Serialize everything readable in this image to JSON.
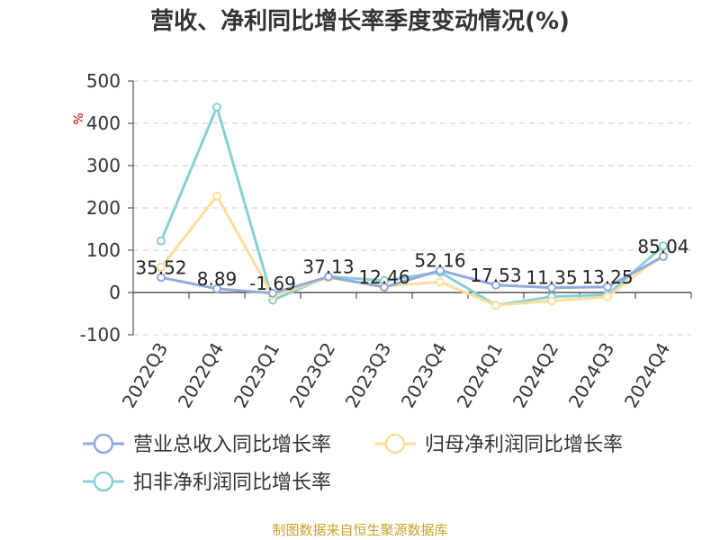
{
  "chart_data": {
    "type": "line",
    "title": "营收、净利同比增长率季度变动情况(%)",
    "ylabel": "%",
    "xlabel": "",
    "ylim": [
      -100,
      500
    ],
    "yticks": [
      -100,
      0,
      100,
      200,
      300,
      400,
      500
    ],
    "grid": true,
    "legend_position": "bottom",
    "categories": [
      "2022Q3",
      "2022Q4",
      "2023Q1",
      "2023Q2",
      "2023Q3",
      "2023Q4",
      "2024Q1",
      "2024Q2",
      "2024Q3",
      "2024Q4"
    ],
    "series": [
      {
        "name": "营业总收入同比增长率",
        "color": "#8faadc",
        "values": [
          35.52,
          8.89,
          -1.69,
          37.13,
          12.46,
          52.16,
          17.53,
          11.35,
          13.25,
          85.04
        ],
        "labels": [
          "35.52",
          "8.89",
          "-1.69",
          "37.13",
          "12.46",
          "52.16",
          "17.53",
          "11.35",
          "13.25",
          "85.04"
        ]
      },
      {
        "name": "归母净利润同比增长率",
        "color": "#fbdd9b",
        "values": [
          60,
          228,
          -8,
          35,
          15,
          25,
          -30,
          -20,
          -10,
          90
        ],
        "labels": []
      },
      {
        "name": "扣非净利润同比增长率",
        "color": "#86d0d6",
        "values": [
          122,
          438,
          -18,
          38,
          28,
          48,
          -30,
          -10,
          -5,
          110
        ],
        "labels": []
      }
    ]
  },
  "footer": {
    "source": "制图数据来自恒生聚源数据库"
  }
}
